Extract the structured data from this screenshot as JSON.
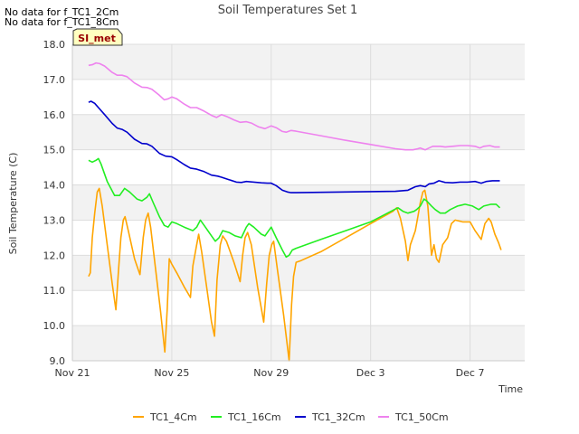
{
  "notes": [
    "No data for f_TC1_2Cm",
    "No data for f_TC1_8Cm"
  ],
  "badge": "SI_met",
  "chart_data": {
    "type": "line",
    "title": "Soil Temperatures Set 1",
    "xlabel": "Time",
    "ylabel": "Soil Temperature (C)",
    "x_units": "days since Nov 21",
    "xlim": [
      0,
      18.2
    ],
    "ylim": [
      9.0,
      18.0
    ],
    "x_ticks": [
      {
        "value": 0,
        "label": "Nov 21"
      },
      {
        "value": 4,
        "label": "Nov 25"
      },
      {
        "value": 8,
        "label": "Nov 29"
      },
      {
        "value": 12,
        "label": "Dec 3"
      },
      {
        "value": 16,
        "label": "Dec 7"
      }
    ],
    "y_ticks": [
      {
        "value": 9.0,
        "label": "9.0"
      },
      {
        "value": 10.0,
        "label": "10.0"
      },
      {
        "value": 11.0,
        "label": "11.0"
      },
      {
        "value": 12.0,
        "label": "12.0"
      },
      {
        "value": 13.0,
        "label": "13.0"
      },
      {
        "value": 14.0,
        "label": "14.0"
      },
      {
        "value": 15.0,
        "label": "15.0"
      },
      {
        "value": 16.0,
        "label": "16.0"
      },
      {
        "value": 17.0,
        "label": "17.0"
      },
      {
        "value": 18.0,
        "label": "18.0"
      }
    ],
    "grid": true,
    "legend_position": "bottom",
    "series": [
      {
        "name": "TC1_4Cm",
        "color": "#ffa500",
        "points": [
          [
            0.65,
            11.4
          ],
          [
            0.72,
            11.5
          ],
          [
            0.8,
            12.5
          ],
          [
            0.9,
            13.2
          ],
          [
            1.0,
            13.8
          ],
          [
            1.08,
            13.9
          ],
          [
            1.2,
            13.4
          ],
          [
            1.4,
            12.3
          ],
          [
            1.6,
            11.2
          ],
          [
            1.75,
            10.45
          ],
          [
            1.85,
            11.5
          ],
          [
            1.95,
            12.5
          ],
          [
            2.05,
            13.0
          ],
          [
            2.12,
            13.1
          ],
          [
            2.25,
            12.7
          ],
          [
            2.5,
            11.9
          ],
          [
            2.72,
            11.45
          ],
          [
            2.85,
            12.5
          ],
          [
            2.95,
            13.0
          ],
          [
            3.05,
            13.2
          ],
          [
            3.15,
            12.8
          ],
          [
            3.35,
            11.6
          ],
          [
            3.55,
            10.4
          ],
          [
            3.72,
            9.25
          ],
          [
            3.82,
            10.5
          ],
          [
            3.9,
            11.9
          ],
          [
            4.0,
            11.75
          ],
          [
            4.2,
            11.5
          ],
          [
            4.5,
            11.1
          ],
          [
            4.75,
            10.8
          ],
          [
            4.85,
            11.7
          ],
          [
            5.0,
            12.3
          ],
          [
            5.08,
            12.6
          ],
          [
            5.2,
            12.1
          ],
          [
            5.4,
            11.1
          ],
          [
            5.6,
            10.1
          ],
          [
            5.72,
            9.7
          ],
          [
            5.82,
            11.3
          ],
          [
            5.95,
            12.3
          ],
          [
            6.05,
            12.55
          ],
          [
            6.2,
            12.4
          ],
          [
            6.5,
            11.8
          ],
          [
            6.75,
            11.25
          ],
          [
            6.85,
            12.0
          ],
          [
            6.95,
            12.5
          ],
          [
            7.05,
            12.65
          ],
          [
            7.2,
            12.3
          ],
          [
            7.45,
            11.1
          ],
          [
            7.7,
            10.1
          ],
          [
            7.82,
            11.2
          ],
          [
            7.92,
            12.0
          ],
          [
            8.02,
            12.3
          ],
          [
            8.1,
            12.4
          ],
          [
            8.25,
            11.6
          ],
          [
            8.5,
            10.3
          ],
          [
            8.72,
            9.0
          ],
          [
            8.82,
            10.6
          ],
          [
            8.9,
            11.4
          ],
          [
            9.0,
            11.8
          ],
          [
            9.2,
            11.85
          ],
          [
            10.0,
            12.1
          ],
          [
            11.0,
            12.5
          ],
          [
            12.0,
            12.9
          ],
          [
            12.9,
            13.25
          ],
          [
            13.05,
            13.35
          ],
          [
            13.2,
            13.05
          ],
          [
            13.4,
            12.4
          ],
          [
            13.5,
            11.85
          ],
          [
            13.6,
            12.3
          ],
          [
            13.8,
            12.7
          ],
          [
            13.9,
            13.1
          ],
          [
            14.0,
            13.5
          ],
          [
            14.1,
            13.8
          ],
          [
            14.18,
            13.85
          ],
          [
            14.3,
            13.4
          ],
          [
            14.45,
            12.0
          ],
          [
            14.55,
            12.3
          ],
          [
            14.65,
            11.9
          ],
          [
            14.75,
            11.8
          ],
          [
            14.9,
            12.3
          ],
          [
            15.1,
            12.5
          ],
          [
            15.25,
            12.9
          ],
          [
            15.4,
            13.0
          ],
          [
            15.7,
            12.95
          ],
          [
            16.0,
            12.95
          ],
          [
            16.2,
            12.7
          ],
          [
            16.45,
            12.45
          ],
          [
            16.6,
            12.9
          ],
          [
            16.75,
            13.05
          ],
          [
            16.85,
            12.95
          ],
          [
            17.0,
            12.6
          ],
          [
            17.15,
            12.35
          ],
          [
            17.25,
            12.15
          ]
        ]
      },
      {
        "name": "TC1_16Cm",
        "color": "#22ee22",
        "points": [
          [
            0.65,
            14.7
          ],
          [
            0.8,
            14.65
          ],
          [
            0.95,
            14.7
          ],
          [
            1.05,
            14.75
          ],
          [
            1.15,
            14.6
          ],
          [
            1.4,
            14.1
          ],
          [
            1.7,
            13.7
          ],
          [
            1.9,
            13.7
          ],
          [
            2.1,
            13.9
          ],
          [
            2.3,
            13.8
          ],
          [
            2.6,
            13.6
          ],
          [
            2.8,
            13.55
          ],
          [
            3.0,
            13.65
          ],
          [
            3.1,
            13.75
          ],
          [
            3.25,
            13.5
          ],
          [
            3.5,
            13.1
          ],
          [
            3.7,
            12.85
          ],
          [
            3.85,
            12.8
          ],
          [
            4.0,
            12.95
          ],
          [
            4.2,
            12.9
          ],
          [
            4.5,
            12.8
          ],
          [
            4.85,
            12.7
          ],
          [
            5.0,
            12.8
          ],
          [
            5.15,
            13.0
          ],
          [
            5.35,
            12.8
          ],
          [
            5.6,
            12.55
          ],
          [
            5.75,
            12.4
          ],
          [
            5.9,
            12.5
          ],
          [
            6.05,
            12.7
          ],
          [
            6.3,
            12.65
          ],
          [
            6.55,
            12.55
          ],
          [
            6.8,
            12.5
          ],
          [
            7.0,
            12.8
          ],
          [
            7.1,
            12.9
          ],
          [
            7.3,
            12.8
          ],
          [
            7.6,
            12.6
          ],
          [
            7.75,
            12.55
          ],
          [
            7.9,
            12.7
          ],
          [
            8.0,
            12.8
          ],
          [
            8.2,
            12.5
          ],
          [
            8.45,
            12.15
          ],
          [
            8.6,
            11.95
          ],
          [
            8.72,
            12.0
          ],
          [
            8.85,
            12.15
          ],
          [
            9.0,
            12.2
          ],
          [
            10.0,
            12.45
          ],
          [
            11.0,
            12.7
          ],
          [
            12.0,
            12.95
          ],
          [
            12.95,
            13.3
          ],
          [
            13.1,
            13.35
          ],
          [
            13.3,
            13.25
          ],
          [
            13.5,
            13.2
          ],
          [
            13.75,
            13.25
          ],
          [
            13.85,
            13.3
          ],
          [
            14.0,
            13.4
          ],
          [
            14.15,
            13.6
          ],
          [
            14.25,
            13.55
          ],
          [
            14.45,
            13.4
          ],
          [
            14.6,
            13.3
          ],
          [
            14.8,
            13.2
          ],
          [
            15.0,
            13.2
          ],
          [
            15.2,
            13.3
          ],
          [
            15.5,
            13.4
          ],
          [
            15.8,
            13.45
          ],
          [
            16.1,
            13.4
          ],
          [
            16.35,
            13.3
          ],
          [
            16.55,
            13.4
          ],
          [
            16.85,
            13.45
          ],
          [
            17.05,
            13.45
          ],
          [
            17.2,
            13.35
          ]
        ]
      },
      {
        "name": "TC1_32Cm",
        "color": "#0000cc",
        "points": [
          [
            0.65,
            16.35
          ],
          [
            0.75,
            16.38
          ],
          [
            0.9,
            16.32
          ],
          [
            1.05,
            16.2
          ],
          [
            1.3,
            16.0
          ],
          [
            1.6,
            15.75
          ],
          [
            1.8,
            15.62
          ],
          [
            2.0,
            15.58
          ],
          [
            2.2,
            15.5
          ],
          [
            2.5,
            15.3
          ],
          [
            2.8,
            15.18
          ],
          [
            3.0,
            15.17
          ],
          [
            3.2,
            15.1
          ],
          [
            3.5,
            14.9
          ],
          [
            3.75,
            14.82
          ],
          [
            4.0,
            14.8
          ],
          [
            4.2,
            14.72
          ],
          [
            4.5,
            14.58
          ],
          [
            4.75,
            14.48
          ],
          [
            5.0,
            14.45
          ],
          [
            5.3,
            14.38
          ],
          [
            5.6,
            14.28
          ],
          [
            5.85,
            14.25
          ],
          [
            6.0,
            14.22
          ],
          [
            6.3,
            14.15
          ],
          [
            6.6,
            14.08
          ],
          [
            6.8,
            14.07
          ],
          [
            7.0,
            14.1
          ],
          [
            7.3,
            14.08
          ],
          [
            7.6,
            14.06
          ],
          [
            7.85,
            14.05
          ],
          [
            8.0,
            14.05
          ],
          [
            8.2,
            13.98
          ],
          [
            8.45,
            13.85
          ],
          [
            8.65,
            13.8
          ],
          [
            8.8,
            13.78
          ],
          [
            9.0,
            13.78
          ],
          [
            10.0,
            13.79
          ],
          [
            11.0,
            13.8
          ],
          [
            12.0,
            13.81
          ],
          [
            13.0,
            13.82
          ],
          [
            13.5,
            13.85
          ],
          [
            13.8,
            13.95
          ],
          [
            14.0,
            13.98
          ],
          [
            14.2,
            13.95
          ],
          [
            14.35,
            14.03
          ],
          [
            14.55,
            14.05
          ],
          [
            14.75,
            14.12
          ],
          [
            15.0,
            14.07
          ],
          [
            15.3,
            14.06
          ],
          [
            15.6,
            14.08
          ],
          [
            15.9,
            14.08
          ],
          [
            16.2,
            14.1
          ],
          [
            16.45,
            14.05
          ],
          [
            16.65,
            14.1
          ],
          [
            16.9,
            14.12
          ],
          [
            17.2,
            14.12
          ]
        ]
      },
      {
        "name": "TC1_50Cm",
        "color": "#ee82ee",
        "points": [
          [
            0.65,
            17.4
          ],
          [
            0.8,
            17.42
          ],
          [
            0.95,
            17.47
          ],
          [
            1.1,
            17.45
          ],
          [
            1.3,
            17.38
          ],
          [
            1.6,
            17.2
          ],
          [
            1.8,
            17.12
          ],
          [
            2.0,
            17.12
          ],
          [
            2.2,
            17.08
          ],
          [
            2.5,
            16.9
          ],
          [
            2.8,
            16.78
          ],
          [
            3.0,
            16.77
          ],
          [
            3.2,
            16.72
          ],
          [
            3.5,
            16.55
          ],
          [
            3.7,
            16.42
          ],
          [
            3.85,
            16.45
          ],
          [
            4.0,
            16.5
          ],
          [
            4.2,
            16.45
          ],
          [
            4.5,
            16.3
          ],
          [
            4.75,
            16.2
          ],
          [
            5.0,
            16.2
          ],
          [
            5.3,
            16.1
          ],
          [
            5.6,
            15.98
          ],
          [
            5.8,
            15.92
          ],
          [
            6.0,
            16.0
          ],
          [
            6.2,
            15.95
          ],
          [
            6.5,
            15.85
          ],
          [
            6.75,
            15.78
          ],
          [
            7.0,
            15.8
          ],
          [
            7.2,
            15.76
          ],
          [
            7.5,
            15.65
          ],
          [
            7.75,
            15.6
          ],
          [
            8.0,
            15.68
          ],
          [
            8.2,
            15.63
          ],
          [
            8.45,
            15.52
          ],
          [
            8.6,
            15.5
          ],
          [
            8.8,
            15.55
          ],
          [
            9.0,
            15.53
          ],
          [
            10.0,
            15.4
          ],
          [
            11.0,
            15.27
          ],
          [
            12.0,
            15.15
          ],
          [
            13.0,
            15.03
          ],
          [
            13.4,
            15.0
          ],
          [
            13.7,
            15.0
          ],
          [
            13.9,
            15.03
          ],
          [
            14.0,
            15.05
          ],
          [
            14.2,
            15.0
          ],
          [
            14.35,
            15.05
          ],
          [
            14.5,
            15.1
          ],
          [
            14.8,
            15.1
          ],
          [
            15.0,
            15.08
          ],
          [
            15.3,
            15.1
          ],
          [
            15.6,
            15.12
          ],
          [
            15.9,
            15.12
          ],
          [
            16.2,
            15.1
          ],
          [
            16.4,
            15.05
          ],
          [
            16.55,
            15.1
          ],
          [
            16.8,
            15.12
          ],
          [
            17.0,
            15.08
          ],
          [
            17.2,
            15.08
          ]
        ]
      }
    ]
  }
}
